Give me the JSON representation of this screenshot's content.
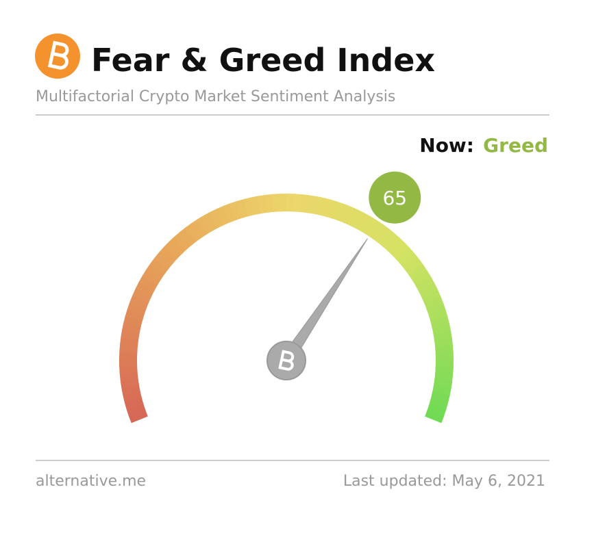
{
  "chart_data": {
    "type": "gauge",
    "title": "Fear & Greed Index",
    "subtitle": "Multifactorial Crypto Market Sentiment Analysis",
    "now_label": "Now:",
    "classification": "Greed",
    "value": 65,
    "ylim": [
      0,
      100
    ],
    "color": "#93b944",
    "source": "alternative.me",
    "updated": "Last updated: May 6, 2021"
  }
}
